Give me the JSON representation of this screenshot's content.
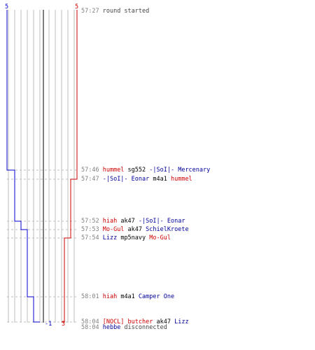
{
  "score": {
    "blue_start": "5",
    "red_start": "5",
    "blue_end": "-1",
    "red_end": "3"
  },
  "colors": {
    "blue": "#0000cc",
    "red": "#cc0000",
    "gray_line": "#bdbdbd",
    "center_line": "#555555",
    "dash": "#bfbfbf",
    "time": "#808080"
  },
  "events": [
    {
      "time": "57:27",
      "parts": [
        {
          "text": "round started",
          "color": "plain"
        }
      ]
    },
    {
      "time": "57:46",
      "parts": [
        {
          "text": "hummel",
          "color": "red"
        },
        {
          "text": " sg552 ",
          "color": "bk"
        },
        {
          "text": "-|SoI|- Mercenary",
          "color": "blue"
        }
      ]
    },
    {
      "time": "57:47",
      "parts": [
        {
          "text": "-|SoI|- Eonar",
          "color": "blue"
        },
        {
          "text": " m4a1 ",
          "color": "bk"
        },
        {
          "text": "hummel",
          "color": "red"
        }
      ]
    },
    {
      "time": "57:52",
      "parts": [
        {
          "text": "hiah",
          "color": "red"
        },
        {
          "text": " ak47 ",
          "color": "bk"
        },
        {
          "text": "-|SoI|- Eonar",
          "color": "blue"
        }
      ]
    },
    {
      "time": "57:53",
      "parts": [
        {
          "text": "Mo-Gul",
          "color": "red"
        },
        {
          "text": " ak47 ",
          "color": "bk"
        },
        {
          "text": "SchielKroete",
          "color": "blue"
        }
      ]
    },
    {
      "time": "57:54",
      "parts": [
        {
          "text": "Lizz",
          "color": "blue"
        },
        {
          "text": " mp5navy ",
          "color": "bk"
        },
        {
          "text": "Mo-Gul",
          "color": "red"
        }
      ]
    },
    {
      "time": "58:01",
      "parts": [
        {
          "text": "hiah",
          "color": "red"
        },
        {
          "text": " m4a1 ",
          "color": "bk"
        },
        {
          "text": "Camper One",
          "color": "blue"
        }
      ]
    },
    {
      "time": "58:04",
      "parts": [
        {
          "text": "[NOCL] butcher",
          "color": "red"
        },
        {
          "text": " ak47 ",
          "color": "bk"
        },
        {
          "text": "Lizz",
          "color": "blue"
        }
      ]
    },
    {
      "time": "58:04",
      "parts": [
        {
          "text": "hebbe",
          "color": "blue"
        },
        {
          "text": " disconnected",
          "color": "plain"
        }
      ]
    }
  ]
}
